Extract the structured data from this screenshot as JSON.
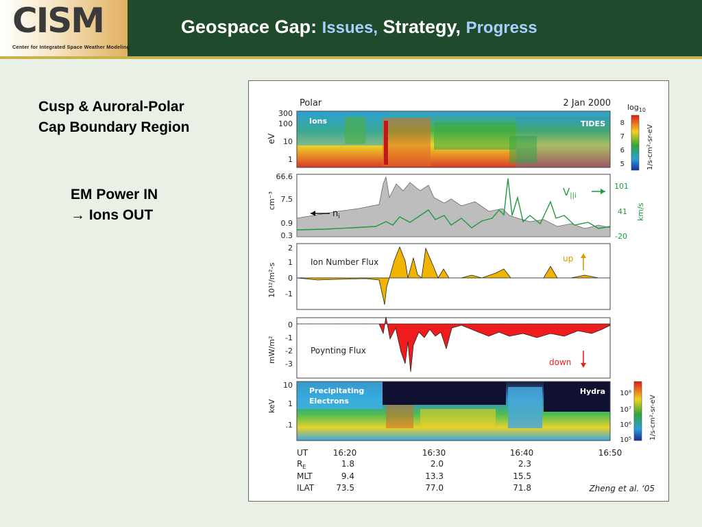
{
  "header": {
    "logo": "CISM",
    "logo_subtitle": "Center for Integrated Space Weather Modeling",
    "title_part1": "Geospace Gap:",
    "title_part2": "Issues,",
    "title_part3": "Strategy,",
    "title_part4": "Progress"
  },
  "left": {
    "heading_line1": "Cusp & Auroral-Polar",
    "heading_line2": "Cap Boundary Region",
    "em_line1": "EM Power IN",
    "em_line2": "→ Ions OUT"
  },
  "figure": {
    "spacecraft": "Polar",
    "date": "2 Jan 2000",
    "panel1": {
      "label": "Ions",
      "instrument": "TIDES",
      "ylabel": "eV",
      "yticks": [
        "300",
        "100",
        "10",
        "1"
      ],
      "colorbar_title": "log",
      "colorbar_sub": "10",
      "colorbar_ticks": [
        "8",
        "7",
        "6",
        "5"
      ],
      "colorbar_unit": "1/s-cm²-sr-eV"
    },
    "panel2": {
      "ylabel": "cm⁻³",
      "yticks": [
        "66.6",
        "7.5",
        "0.9",
        "0.3"
      ],
      "density_label": "n",
      "density_sub": "i",
      "velocity_label": "V",
      "velocity_sub": "||i",
      "right_ticks": [
        "101",
        "41",
        "-20"
      ],
      "right_unit": "km/s",
      "colors": {
        "density": "#bdbdbd",
        "velocity": "#1f9a3c"
      }
    },
    "panel3": {
      "label": "Ion Number Flux",
      "ylabel": "10¹²/m²-s",
      "yticks": [
        "2",
        "1",
        "0",
        "-1"
      ],
      "direction": "up",
      "color": "#f0b400"
    },
    "panel4": {
      "label": "Poynting Flux",
      "ylabel": "mW/m²",
      "yticks": [
        "0",
        "-1",
        "-2",
        "-3"
      ],
      "direction": "down",
      "color": "#ee1c1c"
    },
    "panel5": {
      "label_line1": "Precipitating",
      "label_line2": "Electrons",
      "instrument": "Hydra",
      "ylabel": "keV",
      "yticks": [
        "10",
        "1",
        ".1"
      ],
      "colorbar_ticks": [
        "10⁸",
        "10⁷",
        "10⁶",
        "10⁵"
      ],
      "colorbar_unit": "1/s-cm²-sr-eV"
    },
    "xaxis": {
      "row_labels": [
        "UT",
        "R",
        "MLT",
        "ILAT"
      ],
      "re_sub": "E",
      "columns": [
        {
          "ut": "16:20",
          "re": "1.8",
          "mlt": "9.4",
          "ilat": "73.5"
        },
        {
          "ut": "16:30",
          "re": "2.0",
          "mlt": "13.3",
          "ilat": "77.0"
        },
        {
          "ut": "16:40",
          "re": "2.3",
          "mlt": "15.5",
          "ilat": "71.8"
        },
        {
          "ut": "16:50",
          "re": "",
          "mlt": "",
          "ilat": ""
        }
      ]
    },
    "citation": "Zheng et al. ‘05"
  }
}
